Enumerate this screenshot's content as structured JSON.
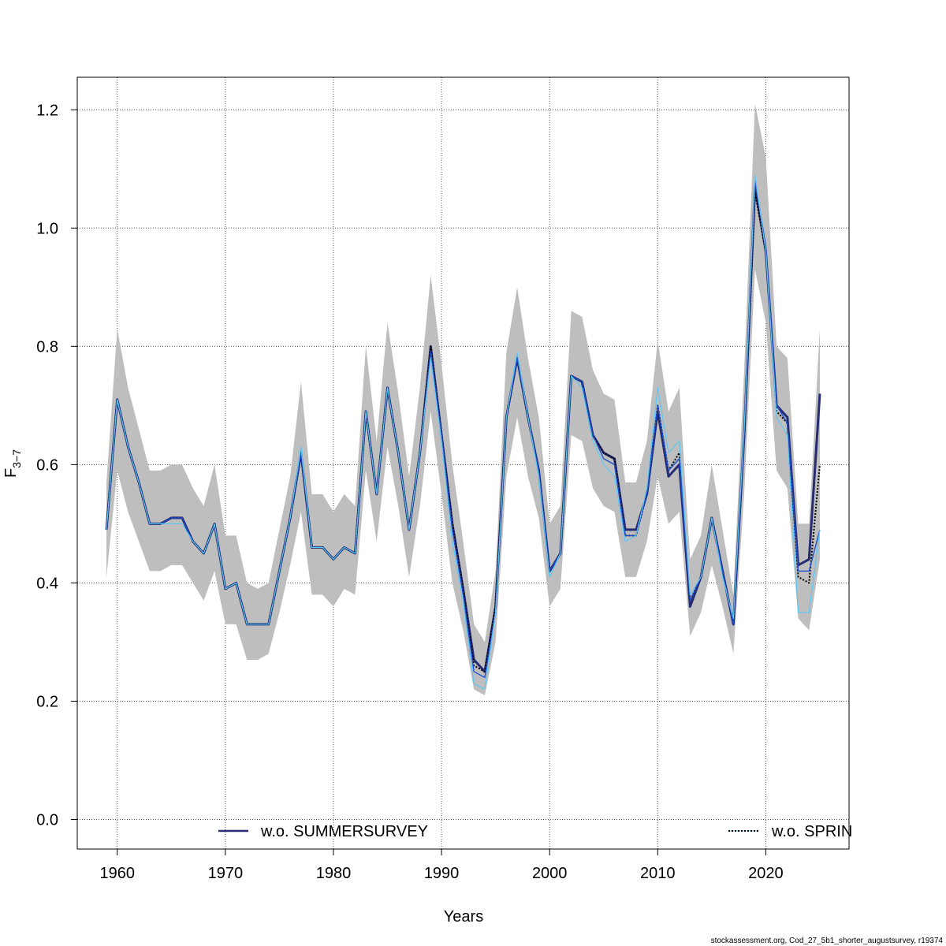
{
  "chart_data": {
    "type": "line",
    "xlabel": "Years",
    "ylabel_main": "F",
    "ylabel_sub": "3−7",
    "xlim": [
      1956.3,
      2027.7
    ],
    "ylim": [
      -0.05,
      1.255
    ],
    "xticks": [
      1960,
      1970,
      1980,
      1990,
      2000,
      2010,
      2020
    ],
    "yticks": [
      "0.0",
      "0.2",
      "0.4",
      "0.6",
      "0.8",
      "1.0",
      "1.2"
    ],
    "grid": true,
    "x": [
      1959,
      1960,
      1961,
      1962,
      1963,
      1964,
      1965,
      1966,
      1967,
      1968,
      1969,
      1970,
      1971,
      1972,
      1973,
      1974,
      1975,
      1976,
      1977,
      1978,
      1979,
      1980,
      1981,
      1982,
      1983,
      1984,
      1985,
      1986,
      1987,
      1988,
      1989,
      1990,
      1991,
      1992,
      1993,
      1994,
      1995,
      1996,
      1997,
      1998,
      1999,
      2000,
      2001,
      2002,
      2003,
      2004,
      2005,
      2006,
      2007,
      2008,
      2009,
      2010,
      2011,
      2012,
      2013,
      2014,
      2015,
      2016,
      2017,
      2018,
      2019,
      2020,
      2021,
      2022,
      2023,
      2024,
      2025
    ],
    "confidence_band": {
      "color": "#bebebe",
      "lower": [
        0.41,
        0.59,
        0.52,
        0.47,
        0.42,
        0.42,
        0.43,
        0.43,
        0.4,
        0.37,
        0.42,
        0.33,
        0.33,
        0.27,
        0.27,
        0.28,
        0.35,
        0.43,
        0.52,
        0.38,
        0.38,
        0.36,
        0.39,
        0.38,
        0.59,
        0.47,
        0.63,
        0.53,
        0.41,
        0.53,
        0.69,
        0.55,
        0.4,
        0.32,
        0.22,
        0.21,
        0.3,
        0.58,
        0.68,
        0.58,
        0.51,
        0.36,
        0.39,
        0.65,
        0.64,
        0.56,
        0.53,
        0.52,
        0.41,
        0.41,
        0.47,
        0.58,
        0.5,
        0.52,
        0.31,
        0.35,
        0.43,
        0.36,
        0.28,
        0.55,
        0.93,
        0.84,
        0.59,
        0.56,
        0.34,
        0.32,
        0.44
      ],
      "upper": [
        0.57,
        0.83,
        0.73,
        0.66,
        0.59,
        0.59,
        0.6,
        0.6,
        0.56,
        0.53,
        0.6,
        0.48,
        0.48,
        0.4,
        0.39,
        0.4,
        0.49,
        0.58,
        0.74,
        0.55,
        0.55,
        0.52,
        0.55,
        0.53,
        0.8,
        0.64,
        0.84,
        0.72,
        0.58,
        0.73,
        0.92,
        0.77,
        0.6,
        0.47,
        0.33,
        0.3,
        0.42,
        0.79,
        0.9,
        0.78,
        0.68,
        0.5,
        0.53,
        0.86,
        0.85,
        0.76,
        0.72,
        0.71,
        0.57,
        0.57,
        0.64,
        0.81,
        0.69,
        0.73,
        0.44,
        0.48,
        0.6,
        0.49,
        0.38,
        0.76,
        1.21,
        1.12,
        0.8,
        0.78,
        0.5,
        0.5,
        0.83
      ]
    },
    "series": [
      {
        "name": "w.o. SUMMERSURVEY",
        "color": "#262b73",
        "style": "solid",
        "values": [
          0.49,
          0.71,
          0.63,
          0.57,
          0.5,
          0.5,
          0.51,
          0.51,
          0.47,
          0.45,
          0.5,
          0.39,
          0.4,
          0.33,
          0.33,
          0.33,
          0.42,
          0.51,
          0.62,
          0.46,
          0.46,
          0.44,
          0.46,
          0.45,
          0.69,
          0.55,
          0.73,
          0.62,
          0.49,
          0.62,
          0.8,
          0.65,
          0.5,
          0.39,
          0.27,
          0.25,
          0.36,
          0.68,
          0.78,
          0.68,
          0.59,
          0.42,
          0.45,
          0.75,
          0.74,
          0.65,
          0.62,
          0.61,
          0.49,
          0.49,
          0.55,
          0.69,
          0.58,
          0.6,
          0.36,
          0.41,
          0.51,
          0.42,
          0.33,
          0.65,
          1.07,
          0.96,
          0.7,
          0.68,
          0.43,
          0.44,
          0.72
        ]
      },
      {
        "name": "w.o. SPRINGSURVEY",
        "legend_label": "w.o. SPRIN",
        "color": "#000000",
        "style": "dotted",
        "values": [
          0.49,
          0.71,
          0.63,
          0.57,
          0.5,
          0.5,
          0.51,
          0.51,
          0.47,
          0.45,
          0.5,
          0.39,
          0.4,
          0.33,
          0.33,
          0.33,
          0.42,
          0.51,
          0.62,
          0.46,
          0.46,
          0.44,
          0.46,
          0.45,
          0.69,
          0.55,
          0.73,
          0.62,
          0.49,
          0.62,
          0.8,
          0.65,
          0.5,
          0.39,
          0.26,
          0.25,
          0.36,
          0.68,
          0.78,
          0.68,
          0.59,
          0.42,
          0.45,
          0.75,
          0.74,
          0.65,
          0.62,
          0.61,
          0.48,
          0.48,
          0.55,
          0.7,
          0.59,
          0.62,
          0.37,
          0.41,
          0.51,
          0.42,
          0.33,
          0.65,
          1.06,
          0.96,
          0.69,
          0.67,
          0.41,
          0.4,
          0.6
        ]
      },
      {
        "name": "",
        "color": "#1f4fd1",
        "style": "solid",
        "values": [
          0.49,
          0.71,
          0.63,
          0.57,
          0.5,
          0.5,
          0.51,
          0.51,
          0.47,
          0.45,
          0.5,
          0.39,
          0.4,
          0.33,
          0.33,
          0.33,
          0.42,
          0.51,
          0.62,
          0.46,
          0.46,
          0.44,
          0.46,
          0.45,
          0.69,
          0.55,
          0.73,
          0.62,
          0.49,
          0.62,
          0.79,
          0.65,
          0.49,
          0.38,
          0.25,
          0.24,
          0.35,
          0.68,
          0.78,
          0.68,
          0.59,
          0.42,
          0.45,
          0.75,
          0.74,
          0.65,
          0.61,
          0.6,
          0.48,
          0.48,
          0.55,
          0.7,
          0.59,
          0.61,
          0.37,
          0.41,
          0.51,
          0.42,
          0.33,
          0.65,
          1.08,
          0.97,
          0.7,
          0.67,
          0.42,
          0.42,
          0.49
        ]
      },
      {
        "name": "",
        "color": "#5bc8f5",
        "style": "solid",
        "values": [
          0.49,
          0.71,
          0.63,
          0.57,
          0.5,
          0.5,
          0.5,
          0.5,
          0.47,
          0.45,
          0.5,
          0.39,
          0.4,
          0.33,
          0.33,
          0.33,
          0.42,
          0.51,
          0.63,
          0.46,
          0.46,
          0.44,
          0.46,
          0.45,
          0.69,
          0.55,
          0.73,
          0.62,
          0.49,
          0.62,
          0.78,
          0.64,
          0.47,
          0.37,
          0.23,
          0.22,
          0.35,
          0.68,
          0.79,
          0.68,
          0.58,
          0.41,
          0.45,
          0.75,
          0.73,
          0.64,
          0.6,
          0.58,
          0.47,
          0.48,
          0.56,
          0.73,
          0.62,
          0.64,
          0.38,
          0.41,
          0.51,
          0.41,
          0.34,
          0.66,
          1.09,
          0.96,
          0.68,
          0.65,
          0.35,
          0.35,
          0.49
        ]
      }
    ],
    "legend": [
      {
        "label": "w.o. SUMMERSURVEY",
        "color": "#262b73",
        "style": "solid"
      },
      {
        "label": "w.o. SPRIN",
        "color": "#000000",
        "style": "dotted"
      }
    ],
    "footer": "stockassessment.org, Cod_27_5b1_shorter_augustsurvey, r19374"
  }
}
